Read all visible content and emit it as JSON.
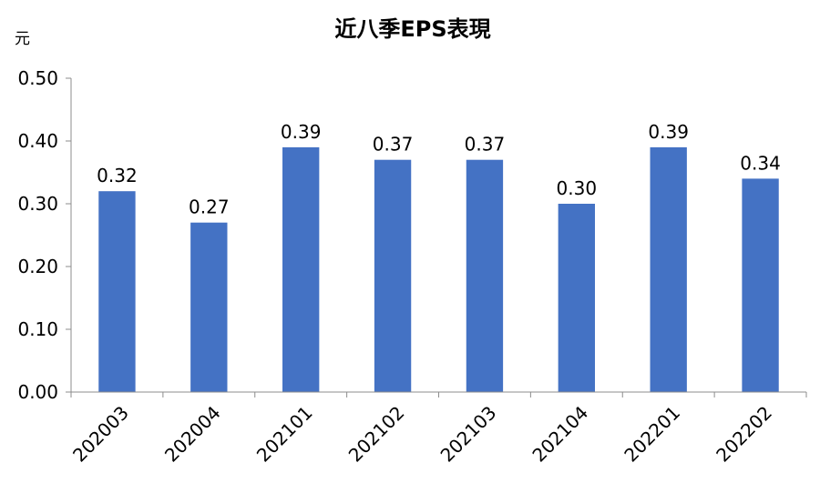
{
  "chart_data": {
    "type": "bar",
    "title": "近八季EPS表現",
    "ylabel": "元",
    "xlabel": "",
    "categories": [
      "202003",
      "202004",
      "202101",
      "202102",
      "202103",
      "202104",
      "202201",
      "202202"
    ],
    "values": [
      0.32,
      0.27,
      0.39,
      0.37,
      0.37,
      0.3,
      0.39,
      0.34
    ],
    "data_labels": [
      "0.32",
      "0.27",
      "0.39",
      "0.37",
      "0.37",
      "0.30",
      "0.39",
      "0.34"
    ],
    "yticks": [
      "0.00",
      "0.10",
      "0.20",
      "0.30",
      "0.40",
      "0.50"
    ],
    "ylim": [
      0,
      0.5
    ],
    "grid": false,
    "bar_color": "#4472C4"
  }
}
